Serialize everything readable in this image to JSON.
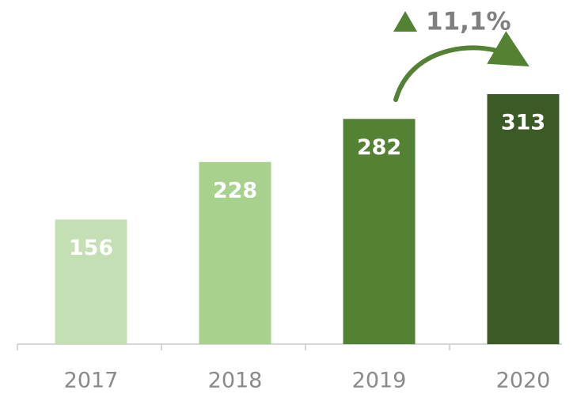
{
  "chart_data": {
    "type": "bar",
    "categories": [
      "2017",
      "2018",
      "2019",
      "2020"
    ],
    "values": [
      156,
      228,
      282,
      313
    ],
    "colors": [
      "#c5dfb4",
      "#a9d18e",
      "#548235",
      "#3b5a25"
    ],
    "annotation": "11,1%"
  }
}
